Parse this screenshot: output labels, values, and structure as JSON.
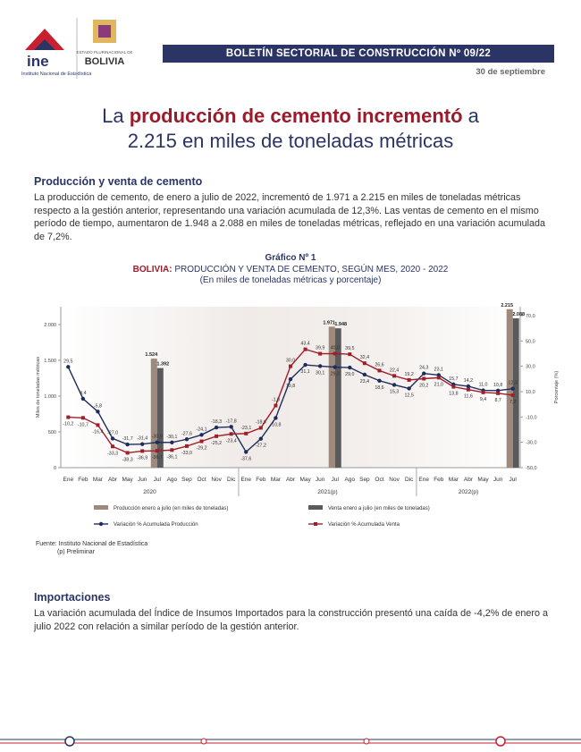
{
  "header": {
    "logo": "ine",
    "institute": "Instituto Nacional de Estadística",
    "state": "ESTADO PLURINACIONAL DE",
    "country": "BOLIVIA",
    "title": "BOLETÍN SECTORIAL DE CONSTRUCCIÓN Nº 09/22",
    "date": "30 de septiembre"
  },
  "headline": {
    "part1": "La ",
    "emphasis": "producción de cemento incrementó",
    "part2": " a",
    "line2": "2.215 en miles de toneladas métricas"
  },
  "section1": {
    "heading": "Producción y venta de cemento",
    "text": "La producción de cemento, de enero a julio de 2022, incrementó de 1.971 a 2.215 en miles de toneladas métricas respecto a la gestión anterior, representando una variación acumulada de 12,3%. Las ventas de cemento en el mismo período de tiempo, aumentaron de 1.948 a 2.088 en miles de toneladas métricas, reflejado en una variación acumulada de 7,2%."
  },
  "chart_data": {
    "type": "bar",
    "label": "Gráfico Nº 1",
    "title_prefix": "BOLIVIA:",
    "title": " PRODUCCIÓN Y VENTA DE CEMENTO, SEGÚN MES, 2020 - 2022",
    "subtitle": "(En miles de toneladas métricas y porcentaje)",
    "ylabel": "Miles de toneladas métricas",
    "y2label": "Porcentaje (%)",
    "categories": [
      "Ene",
      "Feb",
      "Mar",
      "Abr",
      "May",
      "Jun",
      "Jul",
      "Ago",
      "Sep",
      "Oct",
      "Nov",
      "Dic",
      "Ene",
      "Feb",
      "Mar",
      "Abr",
      "May",
      "Jun",
      "Jul",
      "Ago",
      "Sep",
      "Oct",
      "Nov",
      "Dic",
      "Ene",
      "Feb",
      "Mar",
      "Abr",
      "May",
      "Jun",
      "Jul"
    ],
    "years": [
      "2020",
      "2021(p)",
      "2022(p)"
    ],
    "ylim": [
      0,
      2250
    ],
    "yticks": [
      0,
      500,
      {
        "value": 1000,
        "label": "1.000"
      },
      {
        "value": 1500,
        "label": "1.500"
      },
      {
        "value": 2000,
        "label": "2.000"
      }
    ],
    "y2lim": [
      -50,
      77
    ],
    "y2ticks": [
      {
        "value": -50,
        "label": "-50,0"
      },
      {
        "value": -30,
        "label": "-30,0"
      },
      {
        "value": -10,
        "label": "-10,0"
      },
      {
        "value": 10,
        "label": "10,0"
      },
      {
        "value": 30,
        "label": "30,0"
      },
      {
        "value": 50,
        "label": "50,0"
      },
      {
        "value": 70,
        "label": "70,0"
      }
    ],
    "series": [
      {
        "name": "Producción enero a julio (en miles de toneladas)",
        "type": "bar",
        "color": "#9e8a7c",
        "values": [
          null,
          null,
          null,
          null,
          null,
          null,
          1524,
          null,
          null,
          null,
          null,
          null,
          null,
          null,
          null,
          null,
          null,
          null,
          1971,
          null,
          null,
          null,
          null,
          null,
          null,
          null,
          null,
          null,
          null,
          null,
          2215
        ],
        "value_labels": [
          null,
          null,
          null,
          null,
          null,
          null,
          "1.524",
          null,
          null,
          null,
          null,
          null,
          null,
          null,
          null,
          null,
          null,
          null,
          "1.971",
          null,
          null,
          null,
          null,
          null,
          null,
          null,
          null,
          null,
          null,
          null,
          "2.215"
        ]
      },
      {
        "name": "Venta enero a julio (en miles de toneladas)",
        "type": "bar",
        "color": "#5a5a5c",
        "values": [
          null,
          null,
          null,
          null,
          null,
          null,
          1392,
          null,
          null,
          null,
          null,
          null,
          null,
          null,
          null,
          null,
          null,
          null,
          1948,
          null,
          null,
          null,
          null,
          null,
          null,
          null,
          null,
          null,
          null,
          null,
          2088
        ],
        "value_labels": [
          null,
          null,
          null,
          null,
          null,
          null,
          "1.392",
          null,
          null,
          null,
          null,
          null,
          null,
          null,
          null,
          null,
          null,
          null,
          "1.948",
          null,
          null,
          null,
          null,
          null,
          null,
          null,
          null,
          null,
          null,
          null,
          "2.088"
        ]
      },
      {
        "name": "Variación % Acumulada Producción",
        "type": "line",
        "axis": "y2",
        "color": "#1f2d5c",
        "values": [
          29.5,
          4.4,
          -5.8,
          -27.0,
          -31.7,
          -31.4,
          -30.0,
          -30.1,
          -27.6,
          -24.1,
          -18.3,
          -17.8,
          -37.6,
          -27.2,
          -10.8,
          19.8,
          31.1,
          30.1,
          29.3,
          29.0,
          23.4,
          18.6,
          15.3,
          12.5,
          24.3,
          23.1,
          15.7,
          14.2,
          11.0,
          10.8,
          12.3
        ],
        "value_labels": [
          "29,5",
          "4,4",
          "-5,8",
          "-27,0",
          "-31,7",
          "-31,4",
          "-30,0",
          "-30,1",
          "-27,6",
          "-24,1",
          "-18,3",
          "-17,8",
          "-37,6",
          "-27,2",
          "-10,8",
          "19,8",
          "31,1",
          "30,1",
          "29,3",
          "29,0",
          "23,4",
          "18,6",
          "15,3",
          "12,5",
          "24,3",
          "23,1",
          "15,7",
          "14,2",
          "11,0",
          "10,8",
          "12,3"
        ]
      },
      {
        "name": "Variación % Acumulada Venta",
        "type": "line",
        "axis": "y2",
        "color": "#a01e2a",
        "values": [
          -10.2,
          -10.7,
          -16.4,
          -33.3,
          -38.3,
          -36.9,
          -36.7,
          -36.1,
          -33.0,
          -29.2,
          -25.2,
          -23.4,
          -23.1,
          -18.6,
          -1.0,
          30.0,
          43.4,
          39.9,
          40.0,
          39.5,
          32.4,
          26.6,
          22.4,
          19.2,
          20.2,
          21.0,
          13.8,
          11.6,
          9.4,
          8.7,
          7.2
        ],
        "value_labels": [
          "-10,2",
          "-10,7",
          "-16,4",
          "-33,3",
          "-38,3",
          "-36,9",
          "-36,7",
          "-36,1",
          "-33,0",
          "-29,2",
          "-25,2",
          "-23,4",
          "-23,1",
          "-18,6",
          "-1,0",
          "30,0",
          "43,4",
          "39,9",
          "40,0",
          "39,5",
          "32,4",
          "26,6",
          "22,4",
          "19,2",
          "20,2",
          "21,0",
          "13,8",
          "11,6",
          "9,4",
          "8,7",
          "7,2"
        ]
      }
    ],
    "source": "Fuente: Instituto Nacional de Estadística",
    "note": "(p) Preliminar"
  },
  "section2": {
    "heading": "Importaciones",
    "text": "La variación acumulada del Índice de Insumos Importados para la construcción presentó una caída de -4,2% de enero a julio 2022 con relación a similar período de la gestión anterior."
  }
}
